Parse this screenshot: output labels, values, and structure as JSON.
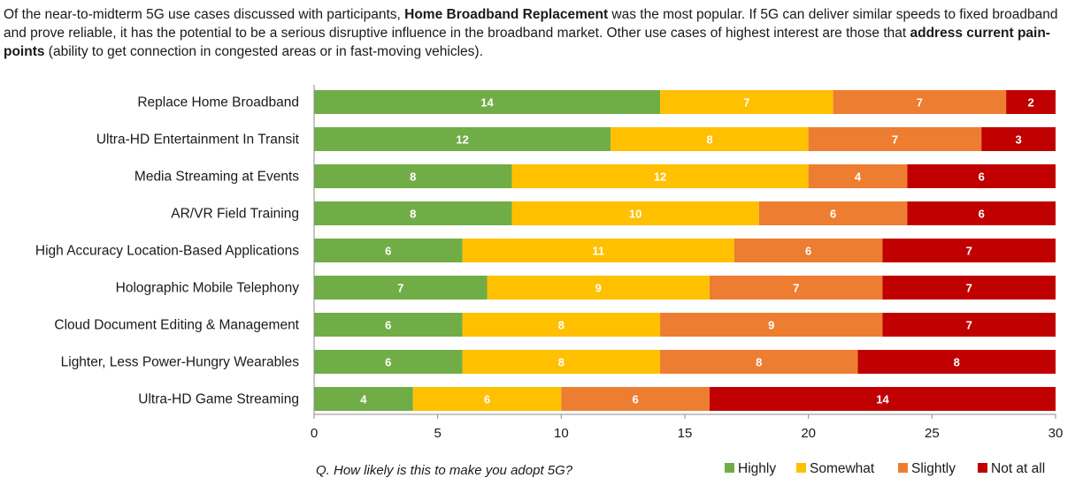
{
  "intro": {
    "p1": "Of the near-to-midterm 5G use cases discussed with participants, ",
    "b1": "Home Broadband Replacement",
    "p2": " was the most popular.  If 5G can deliver similar speeds to fixed broadband and prove reliable, it has the potential to be a serious disruptive influence in the broadband market.  Other use cases of highest interest are those that ",
    "b2": "address current pain-points",
    "p3": " (ability to get connection in congested areas or in fast-moving vehicles)."
  },
  "footnote": "Q. How likely is this to make you adopt 5G?",
  "chart_data": {
    "type": "bar",
    "orientation": "horizontal",
    "stacked": true,
    "categories": [
      "Replace Home Broadband",
      "Ultra-HD Entertainment In Transit",
      "Media Streaming at Events",
      "AR/VR Field Training",
      "High Accuracy Location-Based Applications",
      "Holographic Mobile Telephony",
      "Cloud Document Editing & Management",
      "Lighter, Less Power-Hungry Wearables",
      "Ultra-HD Game Streaming"
    ],
    "series": [
      {
        "name": "Highly",
        "color": "#70ad47",
        "label_color": "#ffffff",
        "values": [
          14,
          12,
          8,
          8,
          6,
          7,
          6,
          6,
          4
        ]
      },
      {
        "name": "Somewhat",
        "color": "#ffc000",
        "label_color": "#ffffff",
        "values": [
          7,
          8,
          12,
          10,
          11,
          9,
          8,
          8,
          6
        ]
      },
      {
        "name": "Slightly",
        "color": "#ed7d31",
        "label_color": "#ffffff",
        "values": [
          7,
          7,
          4,
          6,
          6,
          7,
          9,
          8,
          6
        ]
      },
      {
        "name": "Not at all",
        "color": "#c00000",
        "label_color": "#ffffff",
        "values": [
          2,
          3,
          6,
          6,
          7,
          7,
          7,
          8,
          14
        ]
      }
    ],
    "xlim": [
      0,
      30
    ],
    "xticks": [
      0,
      5,
      10,
      15,
      20,
      25,
      30
    ],
    "grid": false,
    "legend_position": "bottom-right"
  }
}
